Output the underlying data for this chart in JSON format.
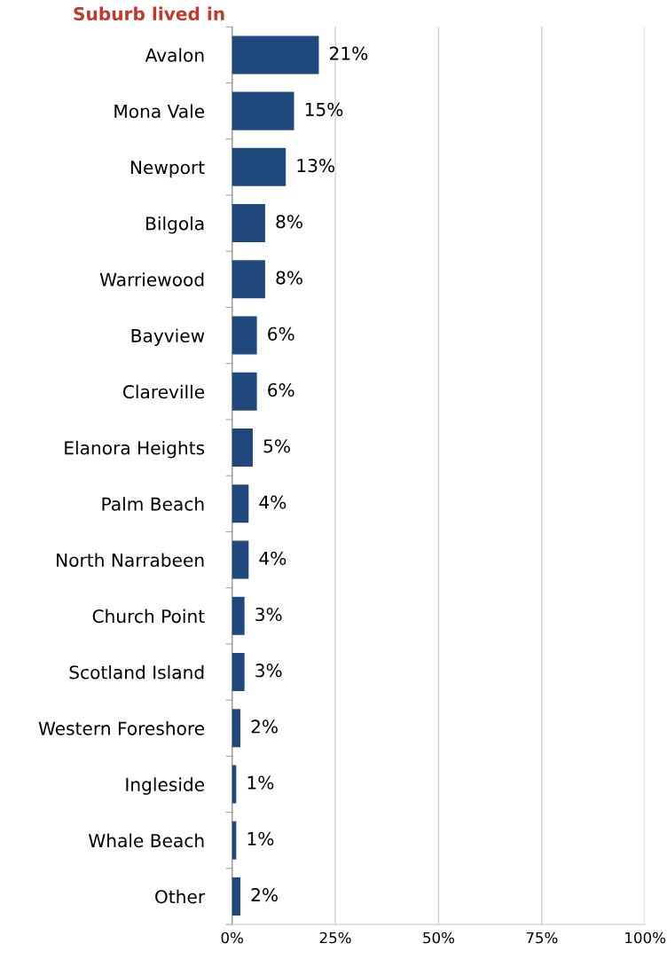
{
  "chart_data": {
    "type": "bar",
    "orientation": "horizontal",
    "title": "Suburb lived in",
    "categories": [
      "Avalon",
      "Mona Vale",
      "Newport",
      "Bilgola",
      "Warriewood",
      "Bayview",
      "Clareville",
      "Elanora Heights",
      "Palm Beach",
      "North Narrabeen",
      "Church Point",
      "Scotland Island",
      "Western Foreshore",
      "Ingleside",
      "Whale Beach",
      "Other"
    ],
    "values": [
      21,
      15,
      13,
      8,
      8,
      6,
      6,
      5,
      4,
      4,
      3,
      3,
      2,
      1,
      1,
      2
    ],
    "value_labels": [
      "21%",
      "15%",
      "13%",
      "8%",
      "8%",
      "6%",
      "6%",
      "5%",
      "4%",
      "4%",
      "3%",
      "3%",
      "2%",
      "1%",
      "1%",
      "2%"
    ],
    "color": "#1f497d",
    "xlim": [
      0,
      100
    ],
    "xticks": [
      {
        "value": 0,
        "label": "0%"
      },
      {
        "value": 25,
        "label": "25%"
      },
      {
        "value": 50,
        "label": "50%"
      },
      {
        "value": 75,
        "label": "75%"
      },
      {
        "value": 100,
        "label": "100%"
      }
    ],
    "grid": "x"
  }
}
